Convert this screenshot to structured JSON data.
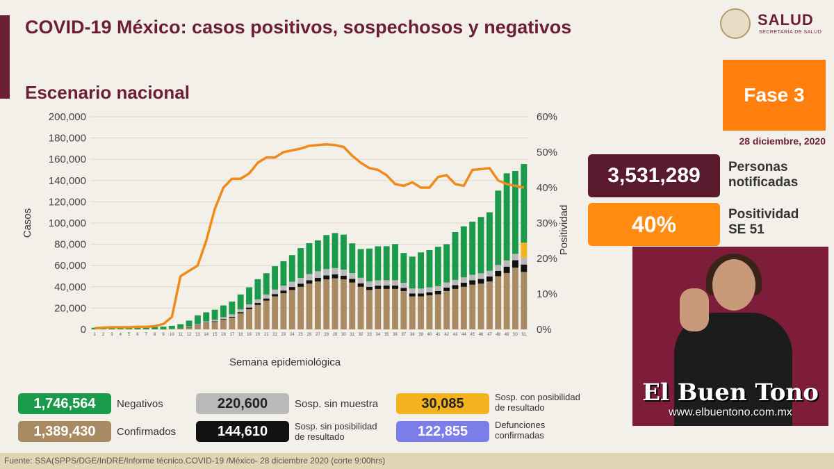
{
  "header": {
    "title": "COVID-19 México: casos positivos, sospechosos y negativos",
    "subtitle": "Escenario nacional"
  },
  "logo": {
    "name": "SALUD",
    "sub": "SECRETARÍA DE SALUD"
  },
  "phase": {
    "label": "Fase 3",
    "date": "28 diciembre, 2020"
  },
  "stats": {
    "notified_value": "3,531,289",
    "notified_label_1": "Personas",
    "notified_label_2": "notificadas",
    "positivity_value": "40%",
    "positivity_label_1": "Positividad",
    "positivity_label_2": "SE 51"
  },
  "legend": {
    "negativos_value": "1,746,564",
    "negativos_label": "Negativos",
    "confirmados_value": "1,389,430",
    "confirmados_label": "Confirmados",
    "sin_muestra_value": "220,600",
    "sin_muestra_label": "Sosp. sin muestra",
    "sin_posib_value": "144,610",
    "sin_posib_label_1": "Sosp. sin posibilidad",
    "sin_posib_label_2": "de resultado",
    "con_posib_value": "30,085",
    "con_posib_label_1": "Sosp. con posibilidad",
    "con_posib_label_2": "de resultado",
    "defunciones_value": "122,855",
    "defunciones_label_1": "Defunciones",
    "defunciones_label_2": "confirmadas"
  },
  "footer": "Fuente: SSA(SPPS/DGE/InDRE/Informe técnico.COVID-19 /México- 28 diciembre 2020 (corte 9:00hrs)",
  "watermark": {
    "name": "El Buen Tono",
    "url": "www.elbuentono.com.mx"
  },
  "colors": {
    "confirmados": "#a98b63",
    "sin_posibilidad": "#111111",
    "sin_muestra": "#b9b9b9",
    "negativos": "#1a9a4a",
    "con_posibilidad": "#f2b31f",
    "positividad": "#f08a1a",
    "defunciones": "#7b7de8",
    "brand": "#6b1f34"
  },
  "chart_data": {
    "type": "bar",
    "stacked": true,
    "xlabel": "Semana epidemiológica",
    "ylabel": "Casos",
    "y2label": "Positividad",
    "ylim": [
      0,
      200000
    ],
    "y2lim": [
      0,
      60
    ],
    "yticks": [
      "0",
      "20,000",
      "40,000",
      "60,000",
      "80,000",
      "100,000",
      "120,000",
      "140,000",
      "160,000",
      "180,000",
      "200,000"
    ],
    "y2ticks": [
      "0%",
      "10%",
      "20%",
      "30%",
      "40%",
      "50%",
      "60%"
    ],
    "categories": [
      "1",
      "2",
      "3",
      "4",
      "5",
      "6",
      "7",
      "8",
      "9",
      "10",
      "11",
      "12",
      "13",
      "14",
      "15",
      "16",
      "17",
      "18",
      "19",
      "20",
      "21",
      "22",
      "23",
      "24",
      "25",
      "26",
      "27",
      "28",
      "29",
      "30",
      "31",
      "32",
      "33",
      "34",
      "35",
      "36",
      "37",
      "38",
      "39",
      "40",
      "41",
      "42",
      "43",
      "44",
      "45",
      "46",
      "47",
      "48",
      "49",
      "50",
      "51"
    ],
    "series": [
      {
        "name": "Confirmados",
        "color": "#a98b63",
        "values": [
          0,
          0,
          0,
          0,
          0,
          0,
          0,
          0,
          50,
          300,
          1000,
          2000,
          4000,
          6000,
          7000,
          9000,
          11000,
          15000,
          19000,
          23000,
          27000,
          31000,
          34000,
          37000,
          40000,
          43000,
          45000,
          47000,
          48000,
          47000,
          44000,
          40000,
          37000,
          38000,
          38000,
          38000,
          36000,
          31000,
          31000,
          32000,
          33000,
          36000,
          38000,
          40000,
          42000,
          43000,
          45000,
          50000,
          53000,
          58000,
          54000
        ]
      },
      {
        "name": "Sosp. sin posibilidad de resultado",
        "color": "#111111",
        "values": [
          0,
          0,
          0,
          0,
          0,
          0,
          0,
          0,
          0,
          0,
          50,
          100,
          200,
          300,
          500,
          700,
          900,
          1200,
          1500,
          1800,
          2000,
          2200,
          2500,
          2800,
          3000,
          3200,
          3500,
          3700,
          3800,
          3500,
          3500,
          3300,
          3000,
          3100,
          3200,
          3200,
          3000,
          2800,
          2800,
          2900,
          3000,
          3300,
          3600,
          3900,
          4200,
          4500,
          4800,
          5000,
          6000,
          7000,
          7000
        ]
      },
      {
        "name": "Sosp. sin muestra",
        "color": "#b9b9b9",
        "values": [
          0,
          0,
          0,
          0,
          0,
          0,
          0,
          0,
          0,
          100,
          300,
          600,
          900,
          1200,
          1500,
          1800,
          2200,
          2600,
          3000,
          3400,
          3800,
          4200,
          4600,
          5000,
          5400,
          5800,
          6200,
          6000,
          5800,
          5600,
          5400,
          5200,
          5000,
          5000,
          5000,
          5000,
          4800,
          4600,
          4600,
          4600,
          4700,
          4800,
          4900,
          5000,
          5100,
          5200,
          5300,
          5500,
          5800,
          6000,
          6500
        ]
      },
      {
        "name": "Sosp. con posibilidad de resultado",
        "color": "#f2b31f",
        "values": [
          0,
          0,
          0,
          0,
          0,
          0,
          0,
          0,
          0,
          0,
          0,
          0,
          0,
          0,
          0,
          0,
          0,
          0,
          0,
          0,
          0,
          0,
          0,
          0,
          0,
          0,
          0,
          0,
          0,
          0,
          0,
          0,
          0,
          0,
          0,
          0,
          0,
          0,
          0,
          0,
          0,
          0,
          0,
          0,
          0,
          0,
          0,
          0,
          0,
          0,
          14000
        ]
      },
      {
        "name": "Negativos",
        "color": "#1a9a4a",
        "values": [
          1500,
          1800,
          1900,
          2000,
          2000,
          2000,
          2000,
          2300,
          2500,
          2900,
          3500,
          5500,
          8000,
          8500,
          9500,
          11000,
          12000,
          14000,
          16000,
          19000,
          20000,
          22000,
          23000,
          25000,
          28000,
          29000,
          29000,
          32000,
          33000,
          33000,
          28000,
          27000,
          31000,
          32000,
          32000,
          34000,
          28000,
          30000,
          34000,
          35000,
          37000,
          36000,
          45000,
          48000,
          50000,
          53000,
          55000,
          70000,
          82000,
          78000,
          74000
        ]
      }
    ],
    "positivity": [
      0.3,
      0.5,
      0.6,
      0.6,
      0.6,
      0.7,
      0.7,
      0.9,
      1.5,
      3.5,
      15,
      16.5,
      18,
      25,
      34,
      40,
      42.5,
      42.5,
      44,
      47,
      48.5,
      48.5,
      50,
      50.5,
      51,
      51.8,
      52,
      52.2,
      52,
      51.5,
      49,
      47,
      45.5,
      45,
      43.5,
      41,
      40.5,
      41.5,
      40,
      40,
      43,
      43.5,
      41,
      40.5,
      45,
      45.2,
      45.5,
      42,
      41,
      40.5,
      40
    ]
  }
}
